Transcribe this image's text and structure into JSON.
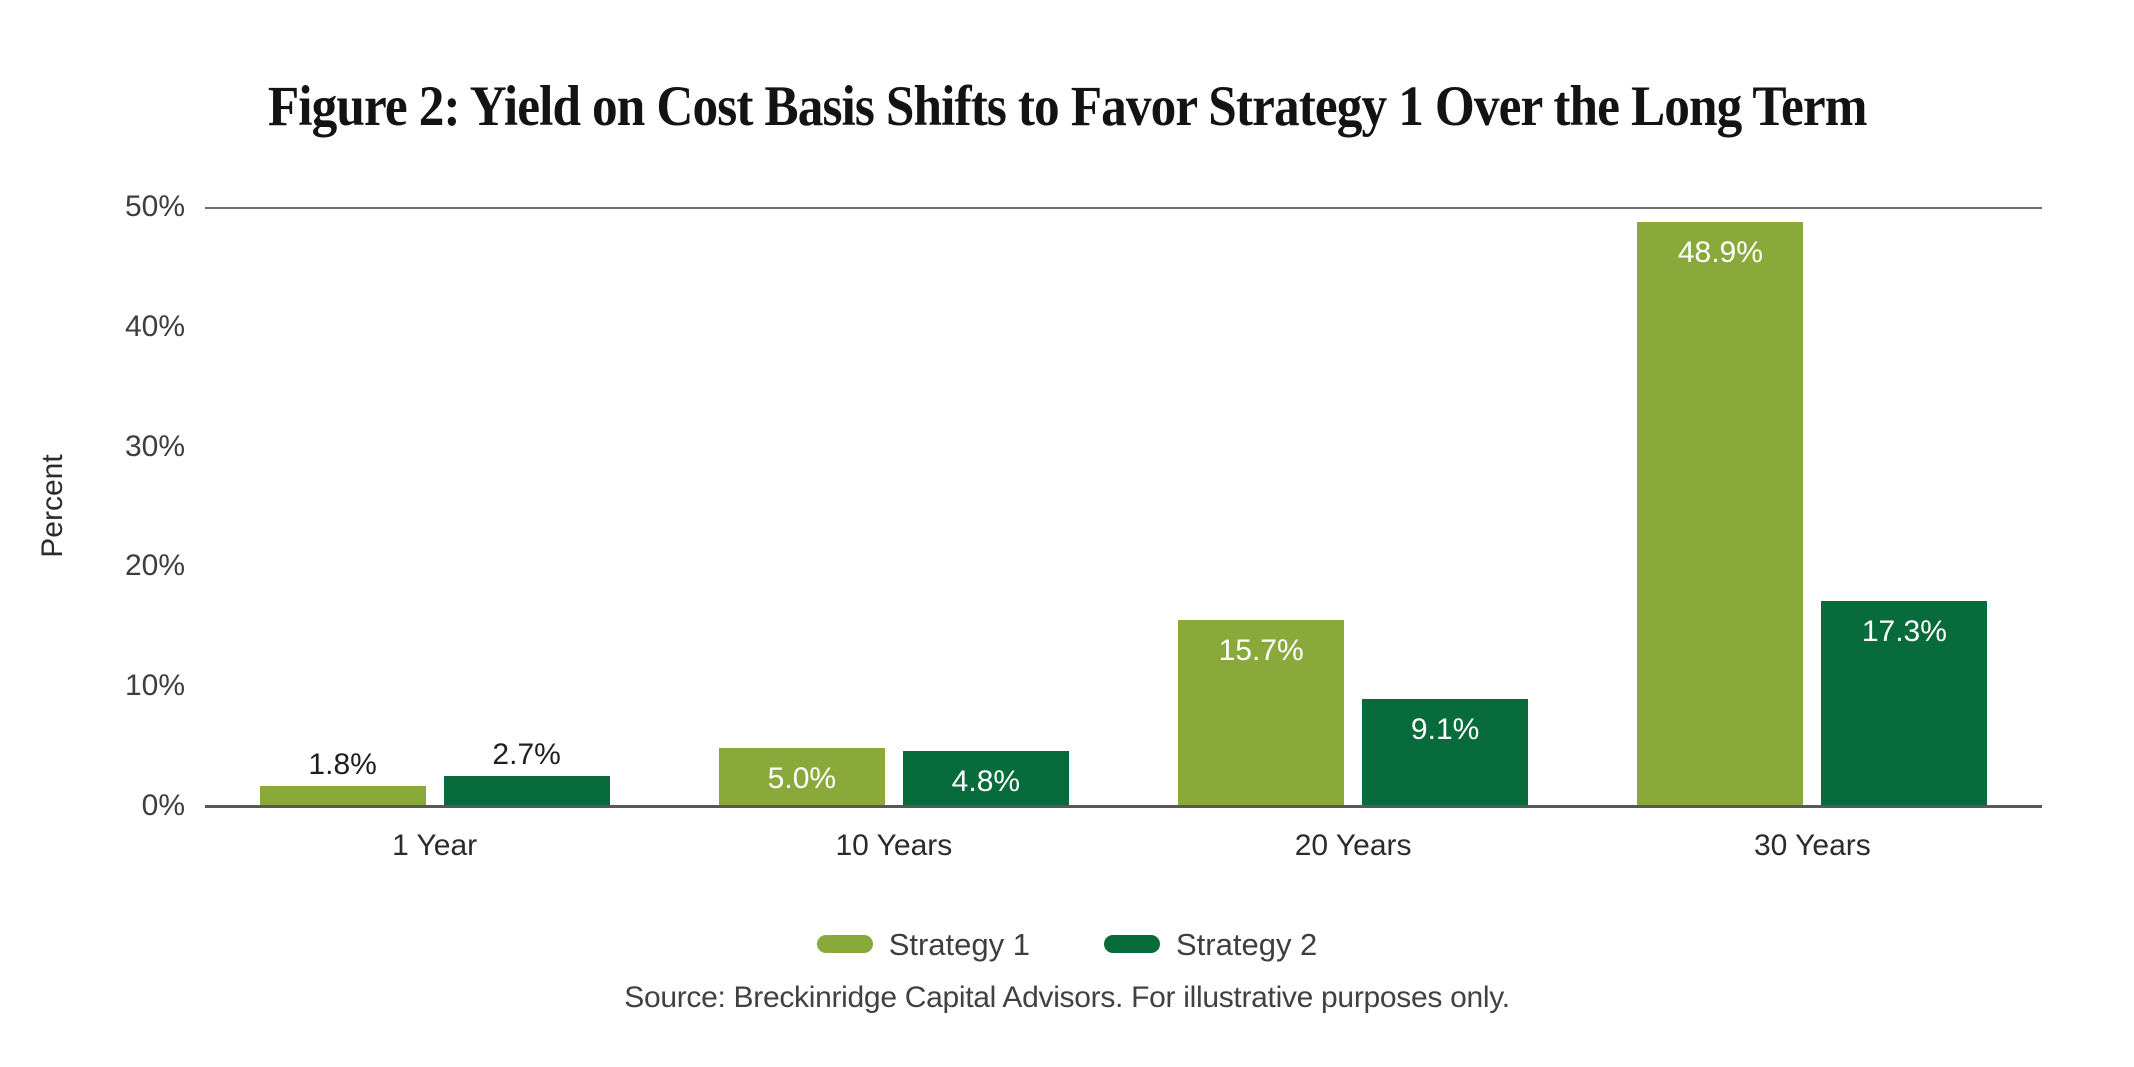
{
  "title": "Figure 2: Yield on Cost Basis Shifts to Favor Strategy 1 Over the Long Term",
  "source_note": "Source: Breckinridge Capital Advisors. For illustrative purposes only.",
  "colors": {
    "strategy1_green": "#8AA93B",
    "strategy2_green": "#076B3C",
    "axis_gray": "#58585A",
    "gridline_gray": "#6F7072",
    "label_dark": "#1F1F1F",
    "label_white": "#FFFFFF"
  },
  "chart_data": {
    "type": "bar",
    "title": "Figure 2: Yield on Cost Basis Shifts to Favor Strategy 1 Over the Long Term",
    "xlabel": "",
    "ylabel": "Percent",
    "ylim": [
      0,
      50
    ],
    "grid": "top-line-only",
    "legend_position": "bottom-center",
    "categories": [
      "1 Year",
      "10 Years",
      "20 Years",
      "30 Years"
    ],
    "y_ticks": [
      {
        "label": "50%",
        "value": 50
      },
      {
        "label": "40%",
        "value": 40
      },
      {
        "label": "30%",
        "value": 30
      },
      {
        "label": "20%",
        "value": 20
      },
      {
        "label": "10%",
        "value": 10
      },
      {
        "label": "0%",
        "value": 0
      }
    ],
    "series": [
      {
        "name": "Strategy 1",
        "color": "#8AA93B",
        "values": [
          1.8,
          5.0,
          15.7,
          48.9
        ],
        "value_labels": [
          "1.8%",
          "5.0%",
          "15.7%",
          "48.9%"
        ],
        "label_inside": [
          false,
          true,
          true,
          true
        ]
      },
      {
        "name": "Strategy 2",
        "color": "#076B3C",
        "values": [
          2.7,
          4.8,
          9.1,
          17.3
        ],
        "value_labels": [
          "2.7%",
          "4.8%",
          "9.1%",
          "17.3%"
        ],
        "label_inside": [
          false,
          true,
          true,
          true
        ]
      }
    ]
  }
}
